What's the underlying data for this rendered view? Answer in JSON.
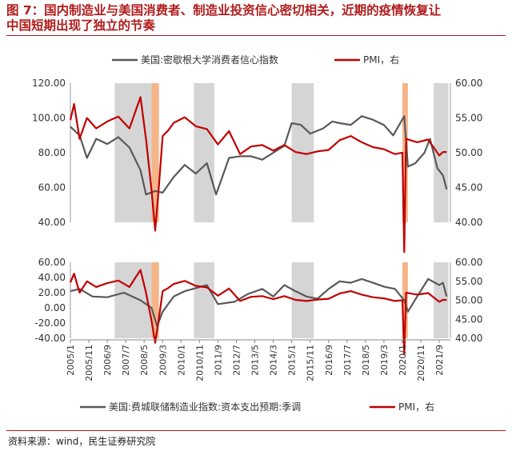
{
  "title_lines": [
    "图 7：国内制造业与美国消费者、制造业投资信心密切相关，近期的疫情恢复让",
    "中国短期出现了独立的节奏"
  ],
  "source": "资料来源：wind，民生证券研究院",
  "colors": {
    "gray": "#595959",
    "red": "#c00000",
    "shade_gray": "#d3d3d3",
    "shade_orange": "#f4b183"
  },
  "x_ticks": [
    "2005/1",
    "2005/11",
    "2006/9",
    "2007/7",
    "2008/5",
    "2009/3",
    "2010/1",
    "2010/11",
    "2011/9",
    "2012/7",
    "2013/5",
    "2014/3",
    "2015/1",
    "2015/11",
    "2016/9",
    "2017/7",
    "2018/5",
    "2019/3",
    "2020/1",
    "2020/11",
    "2021/9"
  ],
  "chart_data": [
    {
      "type": "line",
      "legend": [
        "美国:密歇根大学消费者信心指数",
        "PMI，右"
      ],
      "left_ticks": [
        "120.00",
        "100.00",
        "80.00",
        "60.00",
        "40.00"
      ],
      "right_ticks": [
        "60.00",
        "55.00",
        "50.00",
        "45.00",
        "40.00"
      ],
      "ylim_left": [
        40,
        120
      ],
      "ylim_right": [
        40,
        60
      ],
      "series": [
        {
          "name": "美国:密歇根大学消费者信心指数",
          "axis": "left",
          "x": [
            "2005-01",
            "2005-06",
            "2005-10",
            "2006-03",
            "2006-09",
            "2007-03",
            "2007-09",
            "2008-03",
            "2008-06",
            "2008-11",
            "2009-03",
            "2009-09",
            "2010-03",
            "2010-09",
            "2011-03",
            "2011-08",
            "2012-03",
            "2012-09",
            "2013-03",
            "2013-09",
            "2014-03",
            "2014-09",
            "2015-01",
            "2015-06",
            "2015-11",
            "2016-06",
            "2016-11",
            "2017-03",
            "2017-09",
            "2018-03",
            "2018-09",
            "2019-03",
            "2019-08",
            "2020-02",
            "2020-04",
            "2020-08",
            "2021-01",
            "2021-04",
            "2021-08",
            "2021-11",
            "2022-01"
          ],
          "values": [
            95,
            90,
            77,
            88,
            85,
            89,
            83,
            70,
            56,
            58,
            57,
            66,
            73,
            68,
            74,
            56,
            77,
            78,
            78,
            76,
            80,
            84,
            97,
            96,
            91,
            94,
            98,
            97,
            96,
            101,
            99,
            96,
            90,
            101,
            72,
            74,
            80,
            88,
            71,
            67,
            59
          ]
        },
        {
          "name": "PMI，右",
          "axis": "right",
          "x": [
            "2005-01",
            "2005-03",
            "2005-06",
            "2005-10",
            "2006-03",
            "2006-09",
            "2007-03",
            "2007-09",
            "2008-03",
            "2008-06",
            "2008-09",
            "2008-11",
            "2009-01",
            "2009-03",
            "2009-06",
            "2009-09",
            "2010-03",
            "2010-09",
            "2011-03",
            "2011-09",
            "2012-03",
            "2012-09",
            "2013-03",
            "2013-09",
            "2014-03",
            "2014-09",
            "2015-03",
            "2015-09",
            "2016-03",
            "2016-09",
            "2017-03",
            "2017-09",
            "2018-03",
            "2018-09",
            "2019-03",
            "2019-09",
            "2020-01",
            "2020-02",
            "2020-03",
            "2020-09",
            "2021-03",
            "2021-09",
            "2021-11",
            "2022-01"
          ],
          "values": [
            54.7,
            57,
            52,
            55,
            53.5,
            54.5,
            55.2,
            53.5,
            58,
            52,
            44.6,
            38.8,
            45.3,
            52.4,
            53.2,
            54.3,
            55.1,
            53.8,
            53.4,
            51.2,
            53.1,
            49.8,
            50.9,
            51.1,
            50.3,
            51.1,
            50.1,
            49.8,
            50.2,
            50.4,
            51.8,
            52.4,
            51.5,
            50.8,
            50.5,
            49.8,
            50,
            35.7,
            52,
            51.5,
            51.9,
            49.6,
            50.1,
            50.1
          ]
        }
      ]
    },
    {
      "type": "line",
      "legend": [
        "美国:费城联储制造业指数:资本支出预期:季调",
        "PMI，右"
      ],
      "left_ticks": [
        "60.00",
        "40.00",
        "20.00",
        "0.00",
        "-20.00",
        "-40.00"
      ],
      "right_ticks": [
        "60.00",
        "55.00",
        "50.00",
        "45.00",
        "40.00"
      ],
      "ylim_left": [
        -40,
        60
      ],
      "ylim_right": [
        40,
        60
      ],
      "series": [
        {
          "name": "美国:费城联储制造业指数:资本支出预期:季调",
          "axis": "left",
          "x": [
            "2005-01",
            "2005-06",
            "2006-01",
            "2006-09",
            "2007-06",
            "2008-03",
            "2008-09",
            "2008-12",
            "2009-03",
            "2009-09",
            "2010-03",
            "2010-09",
            "2011-03",
            "2011-09",
            "2012-06",
            "2013-01",
            "2013-09",
            "2014-03",
            "2014-09",
            "2015-03",
            "2015-09",
            "2016-03",
            "2016-09",
            "2017-03",
            "2017-09",
            "2018-03",
            "2018-09",
            "2019-03",
            "2019-09",
            "2020-02",
            "2020-04",
            "2020-09",
            "2021-03",
            "2021-09",
            "2021-11",
            "2022-01"
          ],
          "values": [
            22,
            25,
            15,
            14,
            20,
            10,
            0,
            -24,
            -5,
            15,
            22,
            26,
            30,
            5,
            8,
            18,
            25,
            15,
            30,
            22,
            15,
            12,
            25,
            35,
            33,
            38,
            33,
            28,
            25,
            10,
            -5,
            15,
            38,
            30,
            33,
            15
          ]
        },
        {
          "name": "PMI，右",
          "axis": "right",
          "x": [
            "2005-01",
            "2005-03",
            "2005-06",
            "2005-10",
            "2006-03",
            "2006-09",
            "2007-03",
            "2007-09",
            "2008-03",
            "2008-06",
            "2008-09",
            "2008-11",
            "2009-01",
            "2009-03",
            "2009-06",
            "2009-09",
            "2010-03",
            "2010-09",
            "2011-03",
            "2011-09",
            "2012-03",
            "2012-09",
            "2013-03",
            "2013-09",
            "2014-03",
            "2014-09",
            "2015-03",
            "2015-09",
            "2016-03",
            "2016-09",
            "2017-03",
            "2017-09",
            "2018-03",
            "2018-09",
            "2019-03",
            "2019-09",
            "2020-01",
            "2020-02",
            "2020-03",
            "2020-09",
            "2021-03",
            "2021-09",
            "2021-11",
            "2022-01"
          ],
          "values": [
            54.7,
            57,
            52,
            55,
            53.5,
            54.5,
            55.2,
            53.5,
            58,
            52,
            44.6,
            38.8,
            45.3,
            52.4,
            53.2,
            54.3,
            55.1,
            53.8,
            53.4,
            51.2,
            53.1,
            49.8,
            50.9,
            51.1,
            50.3,
            51.1,
            50.1,
            49.8,
            50.2,
            50.4,
            51.8,
            52.4,
            51.5,
            50.8,
            50.5,
            49.8,
            50,
            35.7,
            52,
            51.5,
            51.9,
            49.6,
            50.1,
            50.1
          ]
        }
      ]
    }
  ],
  "shaded_periods": [
    {
      "start": "2007-01",
      "end": "2008-09",
      "color": "gray"
    },
    {
      "start": "2008-09",
      "end": "2009-01",
      "color": "orange"
    },
    {
      "start": "2010-08",
      "end": "2011-07",
      "color": "gray"
    },
    {
      "start": "2015-01",
      "end": "2016-01",
      "color": "gray"
    },
    {
      "start": "2020-01",
      "end": "2020-04",
      "color": "orange"
    },
    {
      "start": "2021-06",
      "end": "2022-02",
      "color": "gray"
    }
  ]
}
